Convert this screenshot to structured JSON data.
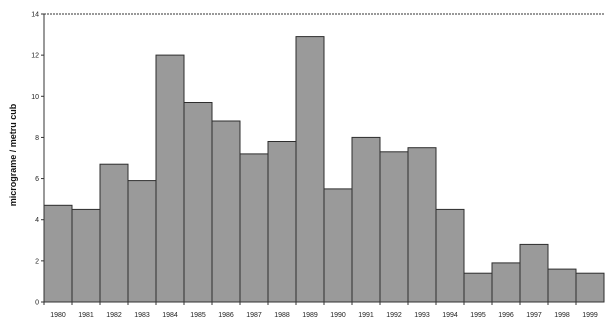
{
  "chart_data": {
    "type": "bar",
    "title": "",
    "xlabel": "",
    "ylabel": "micrograme / metru cub",
    "ylim": [
      0,
      14
    ],
    "yticks": [
      0,
      2,
      4,
      6,
      8,
      10,
      12,
      14
    ],
    "grid": false,
    "legend": "none",
    "bar_color": "#9a9a9a",
    "edge_color": "#2e2e2e",
    "categories": [
      "1980",
      "1981",
      "1982",
      "1983",
      "1984",
      "1985",
      "1986",
      "1987",
      "1988",
      "1989",
      "1990",
      "1991",
      "1992",
      "1993",
      "1994",
      "1995",
      "1996",
      "1997",
      "1998",
      "1999"
    ],
    "values": [
      4.7,
      4.5,
      6.7,
      5.9,
      12.0,
      9.7,
      8.8,
      7.2,
      7.8,
      12.9,
      5.5,
      8.0,
      7.3,
      7.5,
      4.5,
      1.4,
      1.9,
      2.8,
      1.6,
      1.4
    ]
  }
}
